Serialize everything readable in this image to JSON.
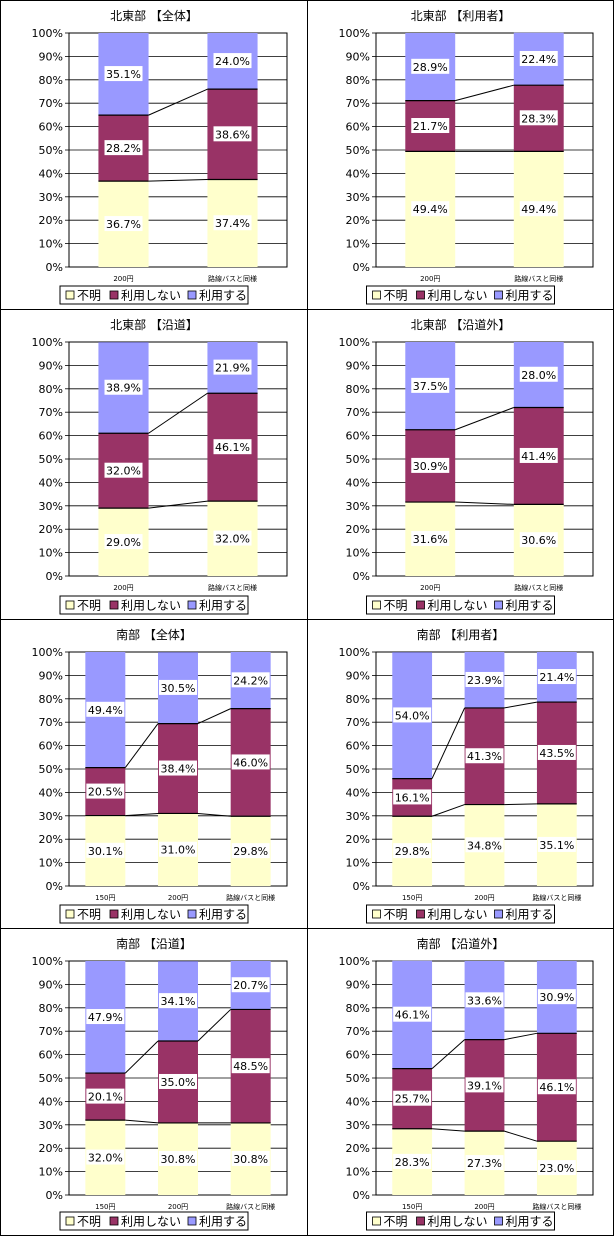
{
  "legend": {
    "labels": [
      "不明",
      "利用しない",
      "利用する"
    ],
    "colors": [
      "#ffffcc",
      "#993366",
      "#9999ff"
    ]
  },
  "y_ticks": [
    "100%",
    "90%",
    "80%",
    "70%",
    "60%",
    "50%",
    "40%",
    "30%",
    "20%",
    "10%",
    "0%"
  ],
  "chart_data": [
    {
      "type": "bar",
      "stacked": true,
      "title": "北東部 【全体】",
      "categories": [
        "200円",
        "路線バスと同様"
      ],
      "series": [
        {
          "name": "不明",
          "values": [
            36.7,
            37.4
          ]
        },
        {
          "name": "利用しない",
          "values": [
            28.2,
            38.6
          ]
        },
        {
          "name": "利用する",
          "values": [
            35.1,
            24.0
          ]
        }
      ],
      "ylim": [
        0,
        100
      ],
      "legend_position": "bottom"
    },
    {
      "type": "bar",
      "stacked": true,
      "title": "北東部 【利用者】",
      "categories": [
        "200円",
        "路線バスと同様"
      ],
      "series": [
        {
          "name": "不明",
          "values": [
            49.4,
            49.4
          ]
        },
        {
          "name": "利用しない",
          "values": [
            21.7,
            28.3
          ]
        },
        {
          "name": "利用する",
          "values": [
            28.9,
            22.4
          ]
        }
      ],
      "ylim": [
        0,
        100
      ],
      "legend_position": "bottom"
    },
    {
      "type": "bar",
      "stacked": true,
      "title": "北東部 【沿道】",
      "categories": [
        "200円",
        "路線バスと同様"
      ],
      "series": [
        {
          "name": "不明",
          "values": [
            29.0,
            32.0
          ]
        },
        {
          "name": "利用しない",
          "values": [
            32.0,
            46.1
          ]
        },
        {
          "name": "利用する",
          "values": [
            38.9,
            21.9
          ]
        }
      ],
      "ylim": [
        0,
        100
      ],
      "legend_position": "bottom"
    },
    {
      "type": "bar",
      "stacked": true,
      "title": "北東部 【沿道外】",
      "categories": [
        "200円",
        "路線バスと同様"
      ],
      "series": [
        {
          "name": "不明",
          "values": [
            31.6,
            30.6
          ]
        },
        {
          "name": "利用しない",
          "values": [
            30.9,
            41.4
          ]
        },
        {
          "name": "利用する",
          "values": [
            37.5,
            28.0
          ]
        }
      ],
      "ylim": [
        0,
        100
      ],
      "legend_position": "bottom"
    },
    {
      "type": "bar",
      "stacked": true,
      "title": "南部 【全体】",
      "categories": [
        "150円",
        "200円",
        "路線バスと同様"
      ],
      "series": [
        {
          "name": "不明",
          "values": [
            30.1,
            31.0,
            29.8
          ]
        },
        {
          "name": "利用しない",
          "values": [
            20.5,
            38.4,
            46.0
          ]
        },
        {
          "name": "利用する",
          "values": [
            49.4,
            30.5,
            24.2
          ]
        }
      ],
      "ylim": [
        0,
        100
      ],
      "legend_position": "bottom"
    },
    {
      "type": "bar",
      "stacked": true,
      "title": "南部 【利用者】",
      "categories": [
        "150円",
        "200円",
        "路線バスと同様"
      ],
      "series": [
        {
          "name": "不明",
          "values": [
            29.8,
            34.8,
            35.1
          ]
        },
        {
          "name": "利用しない",
          "values": [
            16.1,
            41.3,
            43.5
          ]
        },
        {
          "name": "利用する",
          "values": [
            54.0,
            23.9,
            21.4
          ]
        }
      ],
      "ylim": [
        0,
        100
      ],
      "legend_position": "bottom"
    },
    {
      "type": "bar",
      "stacked": true,
      "title": "南部 【沿道】",
      "categories": [
        "150円",
        "200円",
        "路線バスと同様"
      ],
      "series": [
        {
          "name": "不明",
          "values": [
            32.0,
            30.8,
            30.8
          ]
        },
        {
          "name": "利用しない",
          "values": [
            20.1,
            35.0,
            48.5
          ]
        },
        {
          "name": "利用する",
          "values": [
            47.9,
            34.1,
            20.7
          ]
        }
      ],
      "ylim": [
        0,
        100
      ],
      "legend_position": "bottom"
    },
    {
      "type": "bar",
      "stacked": true,
      "title": "南部 【沿道外】",
      "categories": [
        "150円",
        "200円",
        "路線バスと同様"
      ],
      "series": [
        {
          "name": "不明",
          "values": [
            28.3,
            27.3,
            23.0
          ]
        },
        {
          "name": "利用しない",
          "values": [
            25.7,
            39.1,
            46.1
          ]
        },
        {
          "name": "利用する",
          "values": [
            46.1,
            33.6,
            30.9
          ]
        }
      ],
      "ylim": [
        0,
        100
      ],
      "legend_position": "bottom"
    }
  ]
}
